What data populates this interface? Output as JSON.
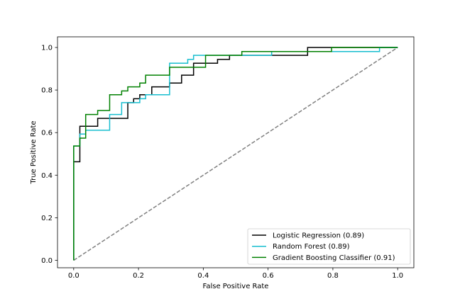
{
  "chart_data": {
    "type": "line",
    "title": "",
    "xlabel": "False Positive Rate",
    "ylabel": "True Positive Rate",
    "xlim": [
      -0.05,
      1.05
    ],
    "ylim": [
      -0.035,
      1.05
    ],
    "xticks": [
      "0.0",
      "0.2",
      "0.4",
      "0.6",
      "0.8",
      "1.0"
    ],
    "yticks": [
      "0.0",
      "0.2",
      "0.4",
      "0.6",
      "0.8",
      "1.0"
    ],
    "grid": false,
    "legend_position": "lower-right",
    "reference_line": {
      "x": [
        0,
        1
      ],
      "y": [
        0,
        1
      ],
      "style": "dashed",
      "color": "#808080"
    },
    "series": [
      {
        "name": "Logistic Regression (0.89)",
        "color": "#000000",
        "x": [
          0.0,
          0.0,
          0.019,
          0.019,
          0.074,
          0.074,
          0.167,
          0.167,
          0.185,
          0.185,
          0.204,
          0.204,
          0.241,
          0.241,
          0.296,
          0.296,
          0.333,
          0.333,
          0.37,
          0.37,
          0.444,
          0.444,
          0.481,
          0.481,
          0.722,
          0.722,
          1.0
        ],
        "y": [
          0.0,
          0.463,
          0.463,
          0.63,
          0.63,
          0.667,
          0.667,
          0.741,
          0.741,
          0.759,
          0.759,
          0.778,
          0.778,
          0.815,
          0.815,
          0.833,
          0.833,
          0.87,
          0.87,
          0.926,
          0.926,
          0.944,
          0.944,
          0.963,
          0.963,
          1.0,
          1.0
        ]
      },
      {
        "name": "Random Forest (0.89)",
        "color": "#17BECF",
        "x": [
          0.0,
          0.0,
          0.019,
          0.019,
          0.037,
          0.037,
          0.111,
          0.111,
          0.148,
          0.148,
          0.204,
          0.204,
          0.222,
          0.222,
          0.296,
          0.296,
          0.352,
          0.352,
          0.37,
          0.37,
          0.407,
          0.407,
          0.611,
          0.611,
          0.944,
          0.944,
          1.0
        ],
        "y": [
          0.0,
          0.537,
          0.537,
          0.593,
          0.593,
          0.611,
          0.611,
          0.685,
          0.685,
          0.741,
          0.741,
          0.759,
          0.759,
          0.778,
          0.778,
          0.926,
          0.926,
          0.944,
          0.944,
          0.963,
          0.963,
          0.963,
          0.963,
          0.981,
          0.981,
          1.0,
          1.0
        ]
      },
      {
        "name": "Gradient Boosting Classifier (0.91)",
        "color": "#008000",
        "x": [
          0.0,
          0.0,
          0.019,
          0.019,
          0.037,
          0.037,
          0.074,
          0.074,
          0.111,
          0.111,
          0.148,
          0.148,
          0.167,
          0.167,
          0.204,
          0.204,
          0.222,
          0.222,
          0.296,
          0.296,
          0.407,
          0.407,
          0.519,
          0.519,
          0.796,
          0.796,
          1.0
        ],
        "y": [
          0.0,
          0.537,
          0.537,
          0.574,
          0.574,
          0.685,
          0.685,
          0.704,
          0.704,
          0.778,
          0.778,
          0.796,
          0.796,
          0.815,
          0.815,
          0.833,
          0.833,
          0.87,
          0.87,
          0.907,
          0.907,
          0.963,
          0.963,
          0.981,
          0.981,
          1.0,
          1.0
        ]
      }
    ]
  }
}
